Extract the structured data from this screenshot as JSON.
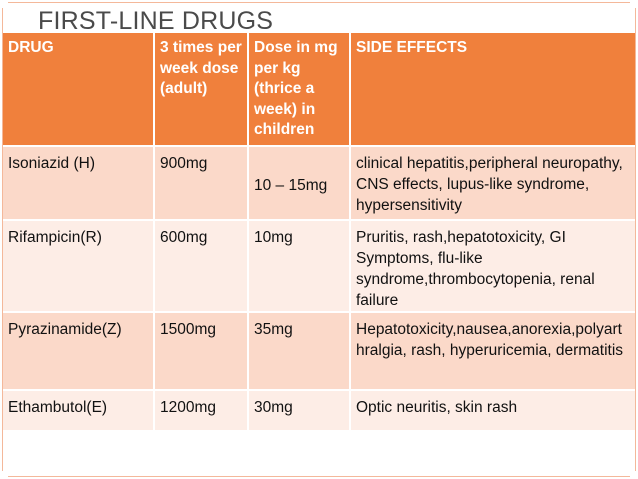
{
  "slide": {
    "title": "FIRST-LINE DRUGS"
  },
  "table": {
    "headers": {
      "drug": "DRUG",
      "weekly_dose": "3 times per week dose(adult)",
      "child_dose": "Dose in mg per kg (thrice a week) in children",
      "side_effects": "SIDE EFFECTS"
    },
    "rows": [
      {
        "drug": "Isoniazid (H)",
        "weekly_dose": "900mg",
        "child_dose": "10 – 15mg",
        "side_effects": "clinical hepatitis,peripheral neuropathy, CNS effects, lupus-like syndrome, hypersensitivity"
      },
      {
        "drug": "Rifampicin(R)",
        "weekly_dose": "600mg",
        "child_dose": "10mg",
        "side_effects": "Pruritis, rash,hepatotoxicity, GI Symptoms, flu-like syndrome,thrombocytopenia, renal failure"
      },
      {
        "drug": "Pyrazinamide(Z)",
        "weekly_dose": "1500mg",
        "child_dose": "35mg",
        "side_effects": "Hepatotoxicity,nausea,anorexia,polyarthralgia, rash, hyperuricemia, dermatitis"
      },
      {
        "drug": "Ethambutol(E)",
        "weekly_dose": "1200mg",
        "child_dose": "30mg",
        "side_effects": "Optic neuritis, skin rash"
      }
    ]
  },
  "colors": {
    "header_bg": "#f0803c",
    "row_dark": "#fbd9c9",
    "row_light": "#fdede6",
    "title_text": "#4a4a4a"
  }
}
